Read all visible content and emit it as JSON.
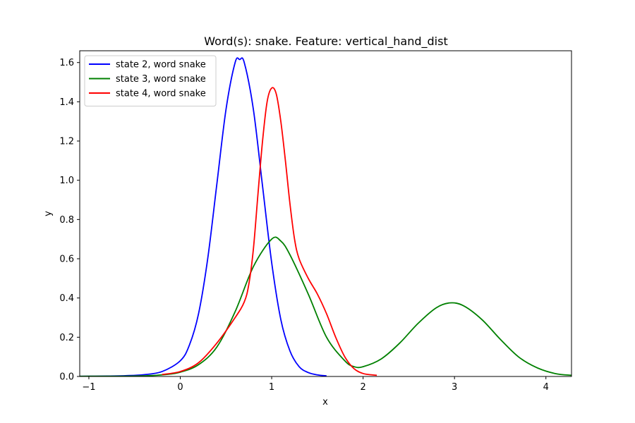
{
  "chart_data": {
    "type": "line",
    "title": "Word(s): snake. Feature: vertical_hand_dist",
    "xlabel": "x",
    "ylabel": "y",
    "xlim": [
      -1.1,
      4.28
    ],
    "ylim": [
      0,
      1.66
    ],
    "xticks": [
      -1,
      0,
      1,
      2,
      3,
      4
    ],
    "yticks": [
      0.0,
      0.2,
      0.4,
      0.6,
      0.8,
      1.0,
      1.2,
      1.4,
      1.6
    ],
    "xtick_labels": [
      "−1",
      "0",
      "1",
      "2",
      "3",
      "4"
    ],
    "ytick_labels": [
      "0.0",
      "0.2",
      "0.4",
      "0.6",
      "0.8",
      "1.0",
      "1.2",
      "1.4",
      "1.6"
    ],
    "grid": false,
    "legend_position": "upper-left",
    "series": [
      {
        "name": "state 2, word snake",
        "color": "#0000ff",
        "x": [
          -1.1,
          -0.8,
          -0.6,
          -0.4,
          -0.2,
          0.0,
          0.1,
          0.2,
          0.3,
          0.4,
          0.5,
          0.6,
          0.65,
          0.7,
          0.8,
          0.9,
          1.0,
          1.1,
          1.2,
          1.3,
          1.4,
          1.5,
          1.6
        ],
        "y": [
          0.001,
          0.002,
          0.004,
          0.009,
          0.025,
          0.08,
          0.16,
          0.32,
          0.6,
          0.98,
          1.36,
          1.6,
          1.615,
          1.6,
          1.36,
          0.97,
          0.58,
          0.29,
          0.13,
          0.05,
          0.02,
          0.008,
          0.003
        ]
      },
      {
        "name": "state 3, word snake",
        "color": "#008000",
        "x": [
          -1.1,
          -0.5,
          -0.2,
          0.0,
          0.2,
          0.4,
          0.6,
          0.8,
          1.0,
          1.1,
          1.2,
          1.4,
          1.6,
          1.8,
          1.9,
          2.0,
          2.2,
          2.4,
          2.6,
          2.8,
          2.95,
          3.1,
          3.3,
          3.5,
          3.7,
          3.9,
          4.1,
          4.28
        ],
        "y": [
          0.001,
          0.002,
          0.008,
          0.022,
          0.06,
          0.15,
          0.33,
          0.56,
          0.7,
          0.69,
          0.62,
          0.42,
          0.2,
          0.08,
          0.05,
          0.05,
          0.09,
          0.17,
          0.27,
          0.35,
          0.375,
          0.36,
          0.29,
          0.19,
          0.1,
          0.045,
          0.015,
          0.006
        ]
      },
      {
        "name": "state 4, word snake",
        "color": "#ff0000",
        "x": [
          -0.2,
          0.0,
          0.2,
          0.4,
          0.6,
          0.7,
          0.75,
          0.8,
          0.85,
          0.9,
          0.95,
          1.0,
          1.05,
          1.1,
          1.15,
          1.2,
          1.25,
          1.3,
          1.4,
          1.5,
          1.6,
          1.7,
          1.8,
          1.9,
          2.0,
          2.1,
          2.15
        ],
        "y": [
          0.01,
          0.025,
          0.07,
          0.17,
          0.3,
          0.38,
          0.47,
          0.65,
          0.93,
          1.2,
          1.4,
          1.47,
          1.44,
          1.3,
          1.1,
          0.88,
          0.7,
          0.6,
          0.5,
          0.42,
          0.32,
          0.2,
          0.1,
          0.04,
          0.015,
          0.008,
          0.006
        ]
      }
    ]
  }
}
